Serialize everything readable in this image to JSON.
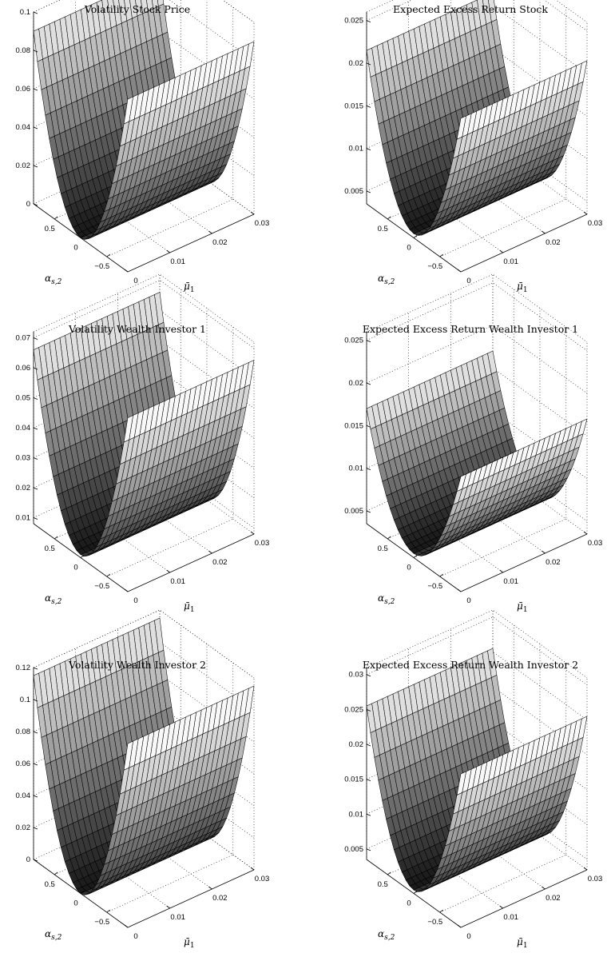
{
  "chart_data": [
    {
      "type": "surface",
      "title": "Volatility Stock Price",
      "xlabel": "ᾱ",
      "xlabel_text": "αs,2",
      "ylabel_text": "μ̄1",
      "x_ticks": [
        "0.5",
        "0",
        "−0.5"
      ],
      "y_ticks": [
        "0",
        "0.01",
        "0.02",
        "0.03"
      ],
      "z_ticks": [
        "0",
        "0.02",
        "0.04",
        "0.06",
        "0.08",
        "0.1"
      ],
      "xlim": [
        -0.9,
        0.9
      ],
      "ylim": [
        0,
        0.03
      ],
      "zlim": [
        0,
        0.1
      ],
      "z_min": 0.0,
      "z_max_edge": 0.09,
      "z_slope_mu": 0.0,
      "colormap": "gray"
    },
    {
      "type": "surface",
      "title": "Expected Excess Return Stock",
      "xlabel_text": "αs,2",
      "ylabel_text": "μ̄1",
      "x_ticks": [
        "0.5",
        "0",
        "−0.5"
      ],
      "y_ticks": [
        "0",
        "0.01",
        "0.02",
        "0.03"
      ],
      "z_ticks": [
        "0.005",
        "0.01",
        "0.015",
        "0.02",
        "0.025"
      ],
      "xlim": [
        -0.9,
        0.9
      ],
      "ylim": [
        0,
        0.03
      ],
      "zlim": [
        0.0035,
        0.026
      ],
      "z_min": 0.004,
      "z_max_edge": 0.0215,
      "z_slope_mu": 0.0,
      "colormap": "gray"
    },
    {
      "type": "surface",
      "title": "Volatility Wealth Investor 1",
      "xlabel_text": "αs,2",
      "ylabel_text": "μ̄1",
      "x_ticks": [
        "0.5",
        "0",
        "−0.5"
      ],
      "y_ticks": [
        "0",
        "0.01",
        "0.02",
        "0.03"
      ],
      "z_ticks": [
        "0.01",
        "0.02",
        "0.03",
        "0.04",
        "0.05",
        "0.06",
        "0.07"
      ],
      "xlim": [
        -0.9,
        0.9
      ],
      "ylim": [
        0,
        0.03
      ],
      "zlim": [
        0.008,
        0.072
      ],
      "z_min": 0.009,
      "z_max_edge": 0.066,
      "z_slope_mu": 0.0,
      "colormap": "gray"
    },
    {
      "type": "surface",
      "title": "Expected Excess Return Wealth Investor 1",
      "xlabel_text": "αs,2",
      "ylabel_text": "μ̄1",
      "x_ticks": [
        "0.5",
        "0",
        "−0.5"
      ],
      "y_ticks": [
        "0",
        "0.01",
        "0.02",
        "0.03"
      ],
      "z_ticks": [
        "0.005",
        "0.01",
        "0.015",
        "0.02",
        "0.025"
      ],
      "xlim": [
        -0.9,
        0.9
      ],
      "ylim": [
        0,
        0.03
      ],
      "zlim": [
        0.0035,
        0.026
      ],
      "z_min": 0.004,
      "z_max_edge": 0.017,
      "z_slope_mu": 0.0,
      "colormap": "gray"
    },
    {
      "type": "surface",
      "title": "Volatility Wealth Investor 2",
      "xlabel_text": "αs,2",
      "ylabel_text": "μ̄1",
      "x_ticks": [
        "0.5",
        "0",
        "−0.5"
      ],
      "y_ticks": [
        "0",
        "0.01",
        "0.02",
        "0.03"
      ],
      "z_ticks": [
        "0",
        "0.02",
        "0.04",
        "0.06",
        "0.08",
        "0.1",
        "0.12"
      ],
      "xlim": [
        -0.9,
        0.9
      ],
      "ylim": [
        0,
        0.03
      ],
      "zlim": [
        0,
        0.12
      ],
      "z_min": 0.0,
      "z_max_edge": 0.115,
      "z_slope_mu": 0.0,
      "colormap": "gray"
    },
    {
      "type": "surface",
      "title": "Expected Excess Return Wealth Investor 2",
      "xlabel_text": "αs,2",
      "ylabel_text": "μ̄1",
      "x_ticks": [
        "0.5",
        "0",
        "−0.5"
      ],
      "y_ticks": [
        "0",
        "0.01",
        "0.02",
        "0.03"
      ],
      "z_ticks": [
        "0.005",
        "0.01",
        "0.015",
        "0.02",
        "0.025",
        "0.03"
      ],
      "xlim": [
        -0.9,
        0.9
      ],
      "ylim": [
        0,
        0.03
      ],
      "zlim": [
        0.0035,
        0.031
      ],
      "z_min": 0.004,
      "z_max_edge": 0.0255,
      "z_slope_mu": 0.0,
      "colormap": "gray"
    }
  ]
}
